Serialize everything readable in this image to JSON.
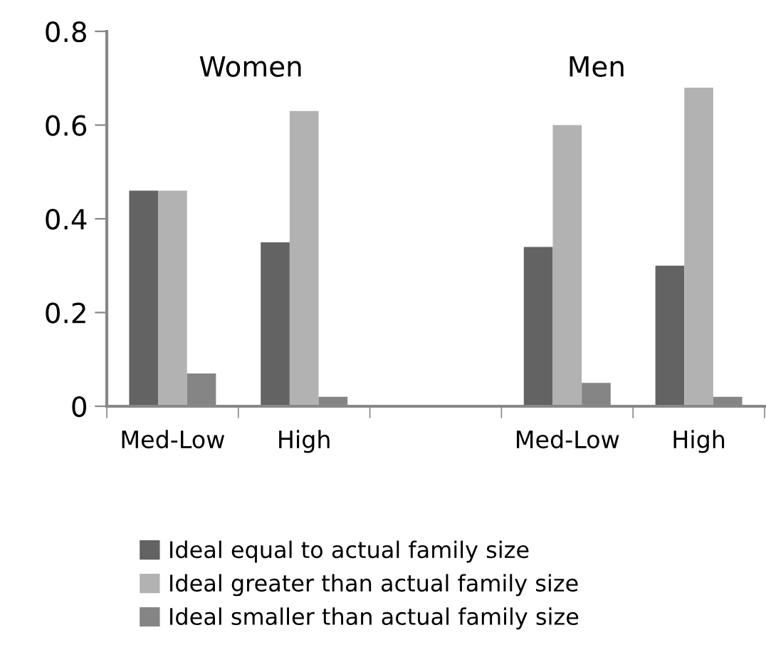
{
  "chart_data": {
    "type": "bar",
    "categories": [
      "Med-Low",
      "High",
      null,
      "Med-Low",
      "High"
    ],
    "series": [
      {
        "name": "Ideal equal to actual family size",
        "color": "#636363",
        "values": [
          0.46,
          0.35,
          null,
          0.34,
          0.3
        ]
      },
      {
        "name": "Ideal greater than actual family size",
        "color": "#b2b2b2",
        "values": [
          0.46,
          0.63,
          null,
          0.6,
          0.68
        ]
      },
      {
        "name": "Ideal smaller than actual family size",
        "color": "#858585",
        "values": [
          0.07,
          0.02,
          null,
          0.05,
          0.02
        ]
      }
    ],
    "annotations": [
      "Women",
      "Men"
    ],
    "ylim": [
      0,
      0.8
    ],
    "yticks": [
      {
        "value": 0,
        "label": "0"
      },
      0.2,
      0.4,
      0.6,
      0.8
    ],
    "grid": false,
    "legend": "bottom"
  }
}
